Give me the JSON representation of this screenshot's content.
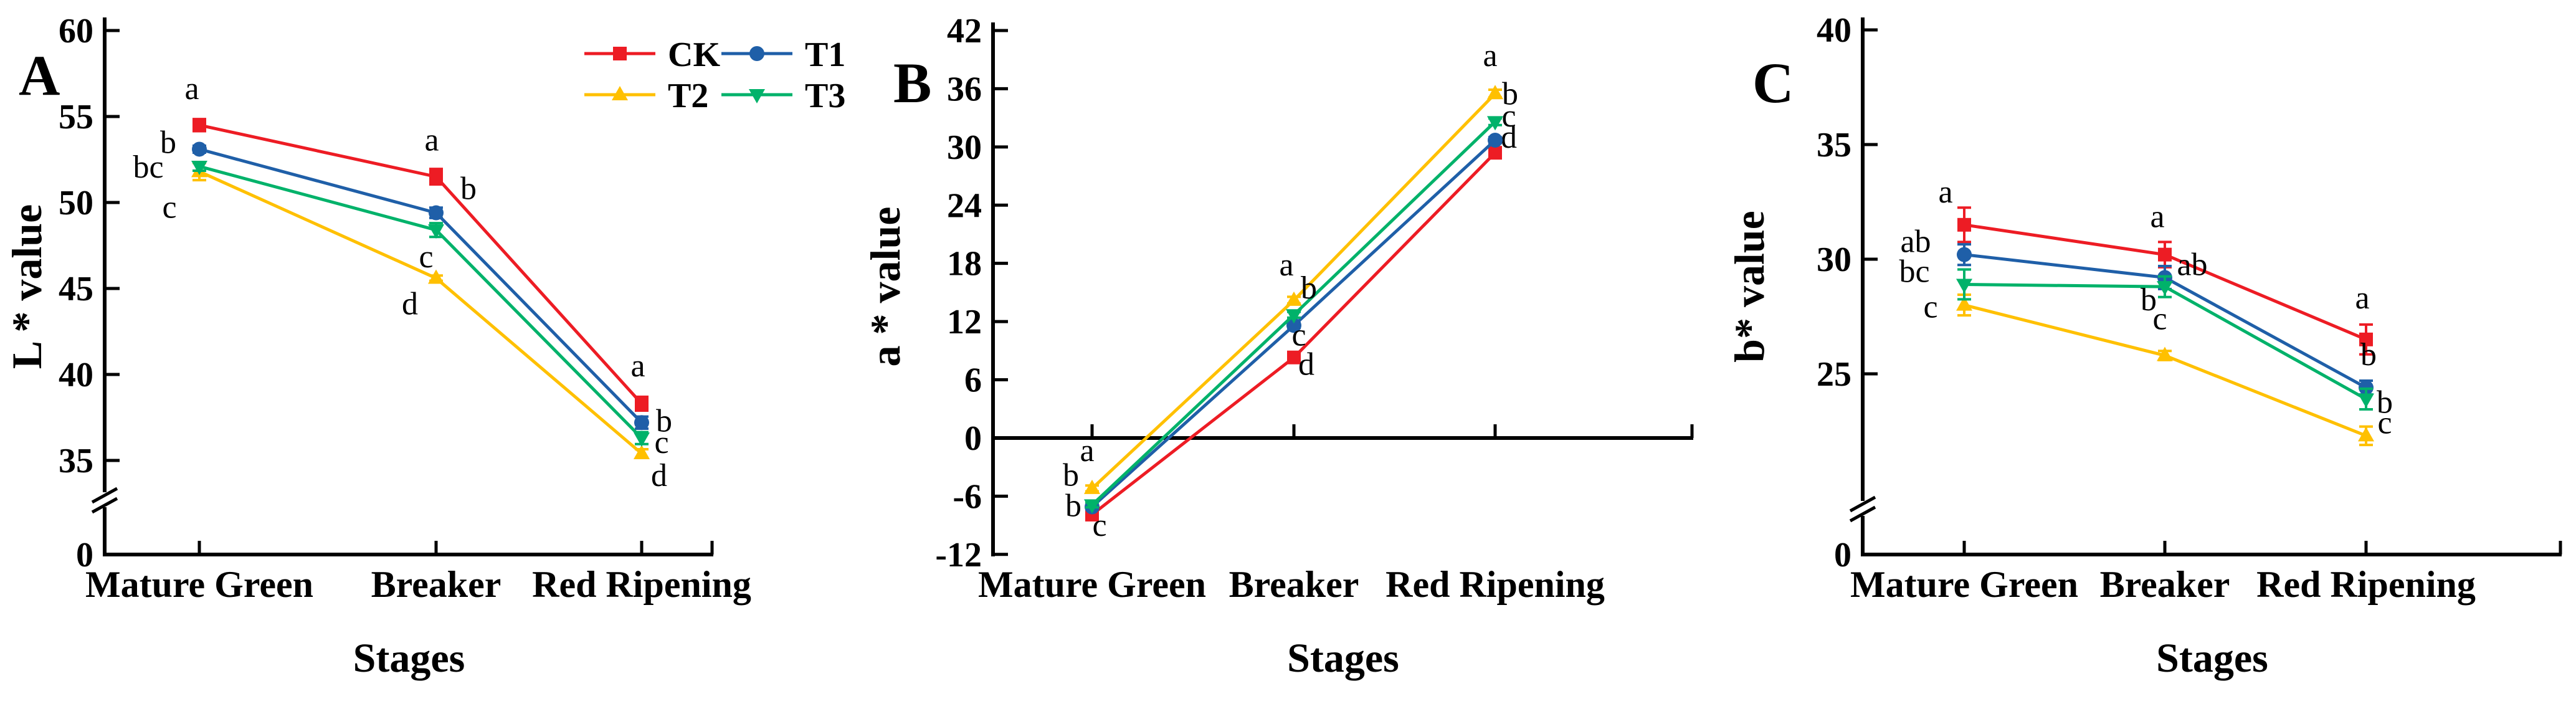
{
  "xlabel": "Stages",
  "categories": [
    "Mature Green",
    "Breaker",
    "Red Ripening"
  ],
  "colors": {
    "CK": "#ED1C24",
    "T1": "#1F5FA8",
    "T2": "#FFC000",
    "T3": "#00B26A",
    "axis": "#000000"
  },
  "legend": {
    "items": [
      {
        "label": "CK",
        "marker": "square",
        "color": "#ED1C24"
      },
      {
        "label": "T1",
        "marker": "circle",
        "color": "#1F5FA8"
      },
      {
        "label": "T2",
        "marker": "triangle-up",
        "color": "#FFC000"
      },
      {
        "label": "T3",
        "marker": "triangle-down",
        "color": "#00B26A"
      }
    ]
  },
  "chart_data": [
    {
      "panel": "A",
      "type": "line",
      "ylabel": "L * value",
      "xlabel": "Stages",
      "categories": [
        "Mature Green",
        "Breaker",
        "Red Ripening"
      ],
      "yticks": [
        60,
        55,
        50,
        45,
        40,
        35
      ],
      "ybreak": true,
      "yzero_label": "0",
      "legend_position": "top-right-inside",
      "series": [
        {
          "name": "CK",
          "marker": "square",
          "color": "#ED1C24",
          "values": [
            54.5,
            51.5,
            38.3
          ],
          "errors": [
            0.35,
            0.45,
            0.4
          ],
          "letters": [
            "a",
            "a",
            "a"
          ],
          "letter_offsets": [
            [
              -12,
              -42
            ],
            [
              -7,
              -42
            ],
            [
              -6,
              -44
            ]
          ]
        },
        {
          "name": "T1",
          "marker": "circle",
          "color": "#1F5FA8",
          "values": [
            53.1,
            49.4,
            37.2
          ],
          "errors": [
            0.2,
            0.3,
            0.35
          ],
          "letters": [
            "b",
            "b",
            "b"
          ],
          "letter_offsets": [
            [
              -50,
              6
            ],
            [
              52,
              -22
            ],
            [
              36,
              14
            ]
          ]
        },
        {
          "name": "T2",
          "marker": "triangle-up",
          "color": "#FFC000",
          "values": [
            51.8,
            45.6,
            35.4
          ],
          "errors": [
            0.5,
            0.15,
            0.25
          ],
          "letters": [
            "c",
            "d",
            "d"
          ],
          "letter_offsets": [
            [
              -48,
              74
            ],
            [
              -42,
              58
            ],
            [
              28,
              52
            ]
          ]
        },
        {
          "name": "T3",
          "marker": "triangle-down",
          "color": "#00B26A",
          "values": [
            52.1,
            48.4,
            36.3
          ],
          "errors": [
            0.25,
            0.4,
            0.35
          ],
          "letters": [
            "bc",
            "c",
            "c"
          ],
          "letter_offsets": [
            [
              -82,
              18
            ],
            [
              -16,
              60
            ],
            [
              32,
              24
            ]
          ]
        }
      ]
    },
    {
      "panel": "B",
      "type": "line",
      "ylabel": "a * value",
      "xlabel": "Stages",
      "categories": [
        "Mature Green",
        "Breaker",
        "Red Ripening"
      ],
      "yticks": [
        42,
        36,
        30,
        24,
        18,
        12,
        6,
        0,
        -6,
        -12
      ],
      "ybreak": false,
      "series": [
        {
          "name": "CK",
          "marker": "square",
          "color": "#ED1C24",
          "values": [
            -7.9,
            8.3,
            29.4
          ],
          "errors": [
            0.3,
            0.3,
            0.55
          ],
          "letters": [
            "c",
            "d",
            "d"
          ],
          "letter_offsets": [
            [
              12,
              34
            ],
            [
              20,
              28
            ],
            [
              22,
              -8
            ]
          ]
        },
        {
          "name": "T1",
          "marker": "circle",
          "color": "#1F5FA8",
          "values": [
            -7.1,
            11.6,
            30.7
          ],
          "errors": [
            0.25,
            0.25,
            0.3
          ],
          "letters": [
            "b",
            "c",
            "c"
          ],
          "letter_offsets": [
            [
              -34,
              -34
            ],
            [
              8,
              32
            ],
            [
              22,
              -22
            ]
          ]
        },
        {
          "name": "T2",
          "marker": "triangle-up",
          "color": "#FFC000",
          "values": [
            -5.2,
            14.2,
            35.5
          ],
          "errors": [
            0.3,
            0.35,
            0.4
          ],
          "letters": [
            "a",
            "a",
            "a"
          ],
          "letter_offsets": [
            [
              -8,
              -44
            ],
            [
              -12,
              -40
            ],
            [
              -8,
              -44
            ]
          ]
        },
        {
          "name": "T3",
          "marker": "triangle-down",
          "color": "#00B26A",
          "values": [
            -6.9,
            12.7,
            32.6
          ],
          "errors": [
            0.25,
            0.3,
            0.35
          ],
          "letters": [
            "b",
            "b",
            "b"
          ],
          "letter_offsets": [
            [
              -30,
              18
            ],
            [
              24,
              -26
            ],
            [
              24,
              -28
            ]
          ]
        }
      ]
    },
    {
      "panel": "C",
      "type": "line",
      "ylabel": "b* value",
      "xlabel": "Stages",
      "categories": [
        "Mature Green",
        "Breaker",
        "Red Ripening"
      ],
      "yticks": [
        40,
        35,
        30,
        25
      ],
      "ybreak": true,
      "yzero_label": "0",
      "series": [
        {
          "name": "CK",
          "marker": "square",
          "color": "#ED1C24",
          "values": [
            31.5,
            30.2,
            26.5
          ],
          "errors": [
            0.75,
            0.55,
            0.65
          ],
          "letters": [
            "a",
            "a",
            "a"
          ],
          "letter_offsets": [
            [
              -30,
              -36
            ],
            [
              -12,
              -44
            ],
            [
              -6,
              -50
            ]
          ]
        },
        {
          "name": "T1",
          "marker": "circle",
          "color": "#1F5FA8",
          "values": [
            30.2,
            29.2,
            24.4
          ],
          "errors": [
            0.45,
            0.5,
            0.3
          ],
          "letters": [
            "ab",
            "ab",
            "b"
          ],
          "letter_offsets": [
            [
              -78,
              -4
            ],
            [
              44,
              -4
            ],
            [
              4,
              -36
            ]
          ]
        },
        {
          "name": "T2",
          "marker": "triangle-up",
          "color": "#FFC000",
          "values": [
            28.0,
            25.8,
            22.3
          ],
          "errors": [
            0.45,
            0.2,
            0.4
          ],
          "letters": [
            "c",
            "c",
            "c"
          ],
          "letter_offsets": [
            [
              -54,
              20
            ],
            [
              -8,
              -42
            ],
            [
              30,
              -4
            ]
          ]
        },
        {
          "name": "T3",
          "marker": "triangle-down",
          "color": "#00B26A",
          "values": [
            28.9,
            28.8,
            23.9
          ],
          "errors": [
            0.65,
            0.45,
            0.45
          ],
          "letters": [
            "bc",
            "b",
            "b"
          ],
          "letter_offsets": [
            [
              -80,
              -4
            ],
            [
              -26,
              38
            ],
            [
              30,
              22
            ]
          ]
        }
      ]
    }
  ]
}
